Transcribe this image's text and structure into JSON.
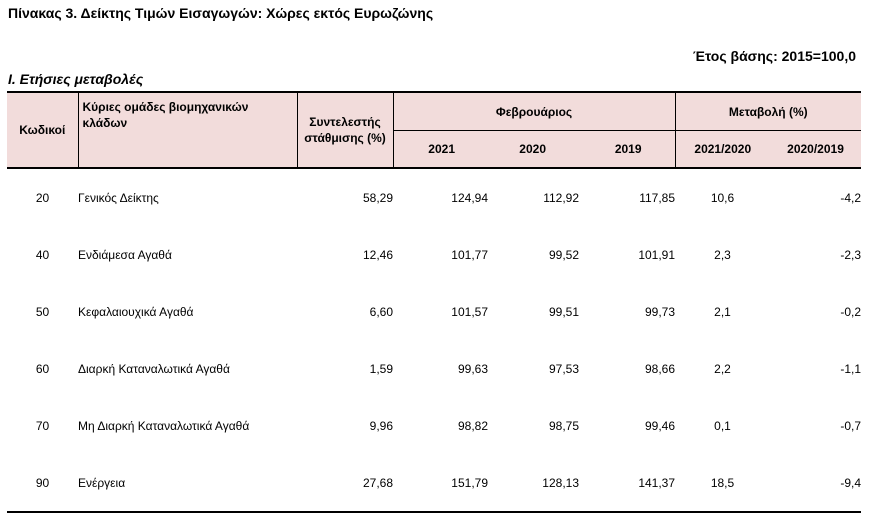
{
  "title": "Πίνακας 3. Δείκτης Τιμών Εισαγωγών: Χώρες εκτός Ευρωζώνης",
  "base_year": "Έτος βάσης: 2015=100,0",
  "section": "Ι. Ετήσιες μεταβολές",
  "headers": {
    "code": "Κωδικοί",
    "group": "Κύριες ομάδες βιομηχανικών κλάδων",
    "weight": "Συντελεστής στάθμισης (%)",
    "month": "Φεβρουάριος",
    "change": "Μεταβολή (%)",
    "years": [
      "2021",
      "2020",
      "2019"
    ],
    "changes": [
      "2021/2020",
      "2020/2019"
    ]
  },
  "rows": [
    {
      "code": "20",
      "name": "Γενικός Δείκτης",
      "weight": "58,29",
      "y2021": "124,94",
      "y2020": "112,92",
      "y2019": "117,85",
      "ch1": "10,6",
      "ch2": "-4,2"
    },
    {
      "code": "40",
      "name": "Ενδιάμεσα Αγαθά",
      "weight": "12,46",
      "y2021": "101,77",
      "y2020": "99,52",
      "y2019": "101,91",
      "ch1": "2,3",
      "ch2": "-2,3"
    },
    {
      "code": "50",
      "name": "Κεφαλαιουχικά Αγαθά",
      "weight": "6,60",
      "y2021": "101,57",
      "y2020": "99,51",
      "y2019": "99,73",
      "ch1": "2,1",
      "ch2": "-0,2"
    },
    {
      "code": "60",
      "name": "Διαρκή Καταναλωτικά Αγαθά",
      "weight": "1,59",
      "y2021": "99,63",
      "y2020": "97,53",
      "y2019": "98,66",
      "ch1": "2,2",
      "ch2": "-1,1"
    },
    {
      "code": "70",
      "name": "Μη Διαρκή Καταναλωτικά Αγαθά",
      "weight": "9,96",
      "y2021": "98,82",
      "y2020": "98,75",
      "y2019": "99,46",
      "ch1": "0,1",
      "ch2": "-0,7"
    },
    {
      "code": "90",
      "name": "Ενέργεια",
      "weight": "27,68",
      "y2021": "151,79",
      "y2020": "128,13",
      "y2019": "141,37",
      "ch1": "18,5",
      "ch2": "-9,4"
    }
  ]
}
